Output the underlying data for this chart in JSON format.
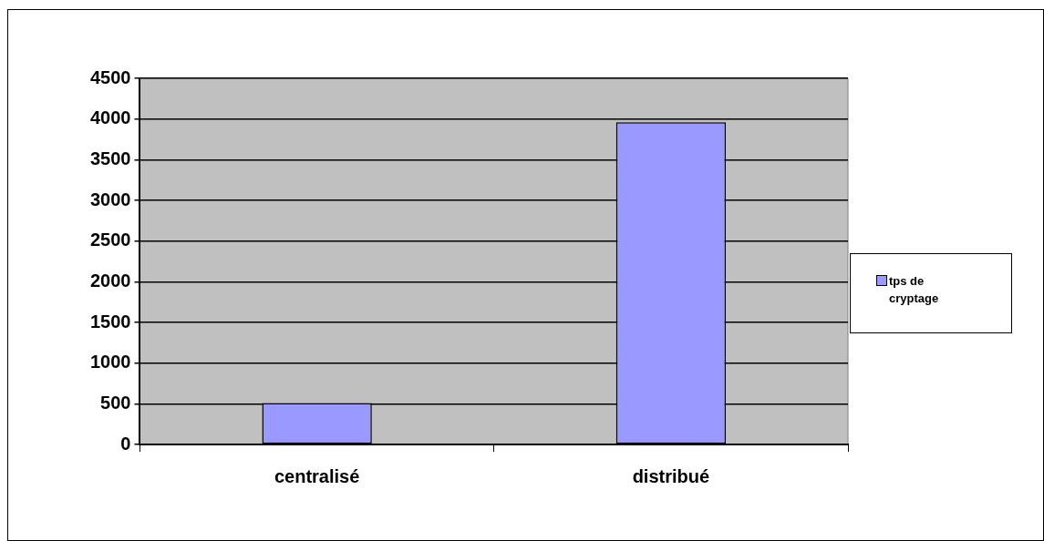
{
  "chart_data": {
    "type": "bar",
    "categories": [
      "centralisé",
      "distribué"
    ],
    "series": [
      {
        "name": "tps de cryptage",
        "color": "#9999ff",
        "values": [
          510,
          3960
        ]
      }
    ],
    "ylim": [
      0,
      4500
    ],
    "yticks": [
      0,
      500,
      1000,
      1500,
      2000,
      2500,
      3000,
      3500,
      4000,
      4500
    ],
    "grid": "y",
    "legend": "right"
  }
}
